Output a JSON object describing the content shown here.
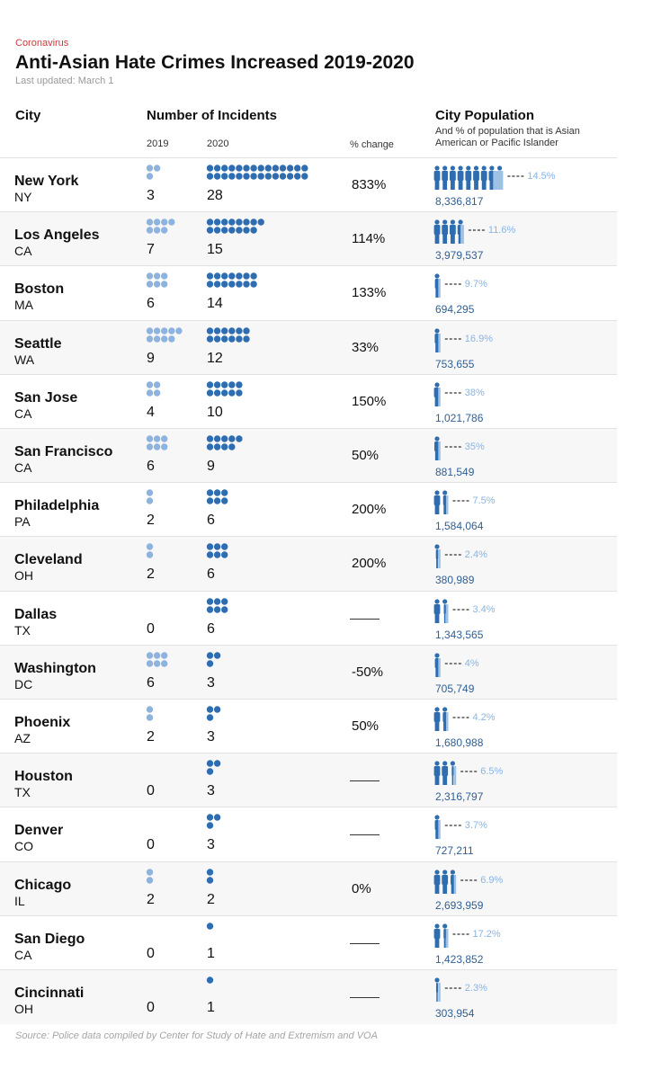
{
  "header": {
    "kicker": "Coronavirus",
    "title": "Anti-Asian Hate Crimes Increased 2019-2020",
    "updated": "Last updated: March 1"
  },
  "columns": {
    "city": "City",
    "incidents": "Number of Incidents",
    "y2019": "2019",
    "y2020": "2020",
    "change": "% change",
    "population": "City Population",
    "population_note": "And % of population that is Asian American or Pacific Islander"
  },
  "source": "Source: Police data compiled by Center for Study of Hate and Extremism and VOA",
  "colors": {
    "dot2019": "#8fb3df",
    "dot2020": "#2f6db1",
    "figure": "#2f6db1",
    "figure_light": "#9ec2e6",
    "pct_text": "#8ab4e2",
    "kicker": "#d0393b"
  },
  "chart_data": {
    "type": "table",
    "title": "Anti-Asian Hate Crimes Increased 2019-2020",
    "columns": [
      "City",
      "2019",
      "2020",
      "% change",
      "City Population",
      "% AAPI"
    ],
    "rows": [
      {
        "city": "New York",
        "state": "NY",
        "y2019": 3,
        "y2020": 28,
        "change": "833%",
        "population": "8,336,817",
        "aapi": "14.5%",
        "aapi_value": 14.5
      },
      {
        "city": "Los Angeles",
        "state": "CA",
        "y2019": 7,
        "y2020": 15,
        "change": "114%",
        "population": "3,979,537",
        "aapi": "11.6%",
        "aapi_value": 11.6
      },
      {
        "city": "Boston",
        "state": "MA",
        "y2019": 6,
        "y2020": 14,
        "change": "133%",
        "population": "694,295",
        "aapi": "9.7%",
        "aapi_value": 9.7
      },
      {
        "city": "Seattle",
        "state": "WA",
        "y2019": 9,
        "y2020": 12,
        "change": "33%",
        "population": "753,655",
        "aapi": "16.9%",
        "aapi_value": 16.9
      },
      {
        "city": "San Jose",
        "state": "CA",
        "y2019": 4,
        "y2020": 10,
        "change": "150%",
        "population": "1,021,786",
        "aapi": "38%",
        "aapi_value": 38
      },
      {
        "city": "San Francisco",
        "state": "CA",
        "y2019": 6,
        "y2020": 9,
        "change": "50%",
        "population": "881,549",
        "aapi": "35%",
        "aapi_value": 35
      },
      {
        "city": "Philadelphia",
        "state": "PA",
        "y2019": 2,
        "y2020": 6,
        "change": "200%",
        "population": "1,584,064",
        "aapi": "7.5%",
        "aapi_value": 7.5
      },
      {
        "city": "Cleveland",
        "state": "OH",
        "y2019": 2,
        "y2020": 6,
        "change": "200%",
        "population": "380,989",
        "aapi": "2.4%",
        "aapi_value": 2.4
      },
      {
        "city": "Dallas",
        "state": "TX",
        "y2019": 0,
        "y2020": 6,
        "change": "",
        "population": "1,343,565",
        "aapi": "3.4%",
        "aapi_value": 3.4
      },
      {
        "city": "Washington",
        "state": "DC",
        "y2019": 6,
        "y2020": 3,
        "change": "-50%",
        "population": "705,749",
        "aapi": "4%",
        "aapi_value": 4
      },
      {
        "city": "Phoenix",
        "state": "AZ",
        "y2019": 2,
        "y2020": 3,
        "change": "50%",
        "population": "1,680,988",
        "aapi": "4.2%",
        "aapi_value": 4.2
      },
      {
        "city": "Houston",
        "state": "TX",
        "y2019": 0,
        "y2020": 3,
        "change": "",
        "population": "2,316,797",
        "aapi": "6.5%",
        "aapi_value": 6.5
      },
      {
        "city": "Denver",
        "state": "CO",
        "y2019": 0,
        "y2020": 3,
        "change": "",
        "population": "727,211",
        "aapi": "3.7%",
        "aapi_value": 3.7
      },
      {
        "city": "Chicago",
        "state": "IL",
        "y2019": 2,
        "y2020": 2,
        "change": "0%",
        "population": "2,693,959",
        "aapi": "6.9%",
        "aapi_value": 6.9
      },
      {
        "city": "San Diego",
        "state": "CA",
        "y2019": 0,
        "y2020": 1,
        "change": "",
        "population": "1,423,852",
        "aapi": "17.2%",
        "aapi_value": 17.2
      },
      {
        "city": "Cincinnati",
        "state": "OH",
        "y2019": 0,
        "y2020": 1,
        "change": "",
        "population": "303,954",
        "aapi": "2.3%",
        "aapi_value": 2.3
      }
    ]
  }
}
